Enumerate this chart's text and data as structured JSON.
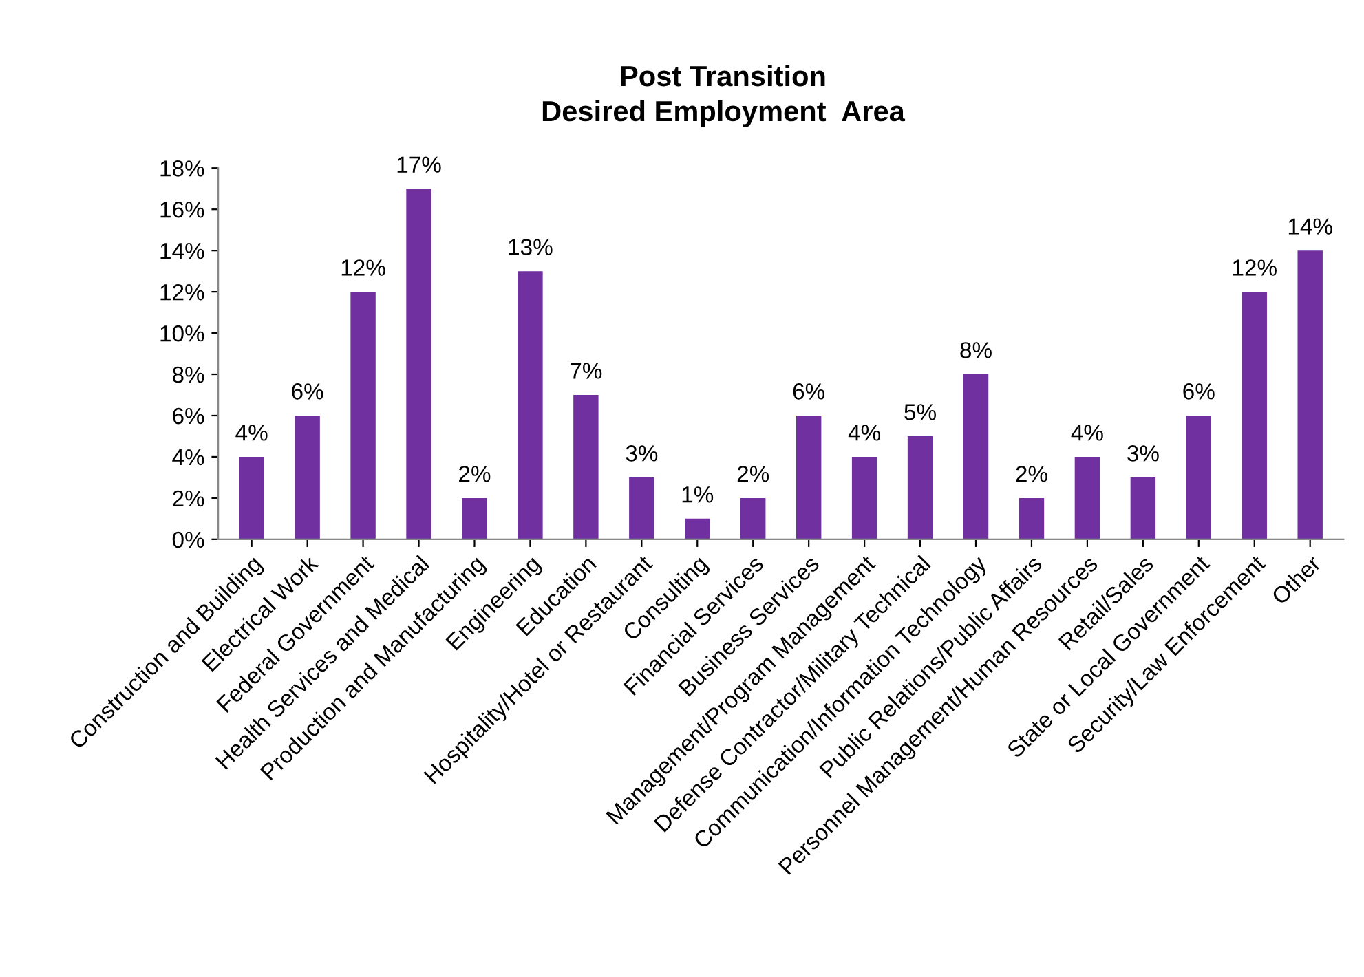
{
  "chart_data": {
    "type": "bar",
    "title": "Post Transition\nDesired Employment  Area",
    "categories": [
      "Construction and Building",
      "Electrical Work",
      "Federal Government",
      "Health Services and Medical",
      "Production and Manufacturing",
      "Engineering",
      "Education",
      "Hospitality/Hotel or Restaurant",
      "Consulting",
      "Financial Services",
      "Business Services",
      "Management/Program Management",
      "Defense Contractor/Military Technical",
      "Communication/Information Technology",
      "Public Relations/Public Affairs",
      "Personnel Management/Human Resources",
      "Retail/Sales",
      "State or Local Government",
      "Security/Law Enforcement",
      "Other"
    ],
    "values": [
      4,
      6,
      12,
      17,
      2,
      13,
      7,
      3,
      1,
      2,
      6,
      4,
      5,
      8,
      2,
      4,
      3,
      6,
      12,
      14
    ],
    "value_labels": [
      "4%",
      "6%",
      "12%",
      "17%",
      "2%",
      "13%",
      "7%",
      "3%",
      "1%",
      "2%",
      "6%",
      "4%",
      "5%",
      "8%",
      "2%",
      "4%",
      "3%",
      "6%",
      "12%",
      "14%"
    ],
    "color": "#7030a0",
    "ylim": [
      0,
      18
    ],
    "yticks": [
      {
        "value": 0,
        "label": "0%"
      },
      {
        "value": 2,
        "label": "2%"
      },
      {
        "value": 4,
        "label": "4%"
      },
      {
        "value": 6,
        "label": "6%"
      },
      {
        "value": 8,
        "label": "8%"
      },
      {
        "value": 10,
        "label": "10%"
      },
      {
        "value": 12,
        "label": "12%"
      },
      {
        "value": 14,
        "label": "14%"
      },
      {
        "value": 16,
        "label": "16%"
      },
      {
        "value": 18,
        "label": "18%"
      }
    ],
    "grid": false,
    "legend": false
  }
}
